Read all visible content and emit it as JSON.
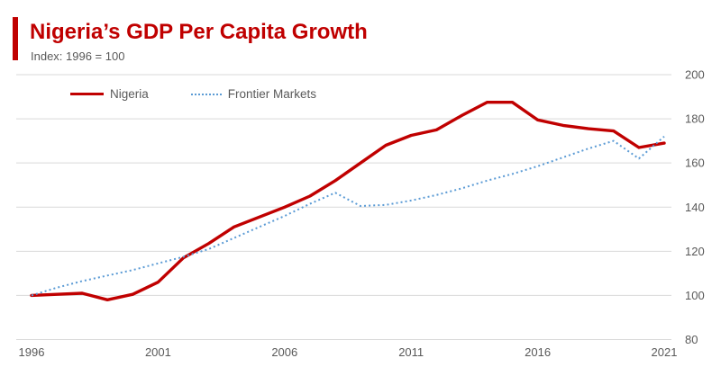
{
  "header": {
    "title": "Nigeria’s GDP Per Capita Growth",
    "subtitle": "Index: 1996 = 100"
  },
  "colors": {
    "accent_red": "#C00000",
    "nigeria_line": "#C00000",
    "frontier_line": "#5B9BD5",
    "gridline": "#D9D9D9",
    "axis_text": "#595959",
    "background": "#FFFFFF"
  },
  "legend": {
    "items": [
      {
        "label": "Nigeria",
        "style": "solid",
        "color": "#C00000"
      },
      {
        "label": "Frontier Markets",
        "style": "dotted",
        "color": "#5B9BD5"
      }
    ]
  },
  "chart_data": {
    "type": "line",
    "title": "Nigeria’s GDP Per Capita Growth",
    "subtitle": "Index: 1996 = 100",
    "xlabel": "",
    "ylabel": "",
    "x": [
      1996,
      1997,
      1998,
      1999,
      2000,
      2001,
      2002,
      2003,
      2004,
      2005,
      2006,
      2007,
      2008,
      2009,
      2010,
      2011,
      2012,
      2013,
      2014,
      2015,
      2016,
      2017,
      2018,
      2019,
      2020,
      2021
    ],
    "series": [
      {
        "name": "Nigeria",
        "style": "solid",
        "color": "#C00000",
        "values": [
          100,
          100.5,
          101,
          98,
          100.5,
          106,
          117,
          123.5,
          131,
          135.5,
          140,
          145,
          152,
          160,
          168,
          172.5,
          175,
          181.5,
          187.5,
          187.5,
          179.5,
          177,
          175.5,
          174.5,
          167,
          169
        ]
      },
      {
        "name": "Frontier Markets",
        "style": "dotted",
        "color": "#5B9BD5",
        "values": [
          100,
          103.5,
          106.5,
          109,
          111.5,
          114.5,
          117.5,
          121,
          126,
          131,
          136,
          141.5,
          146.5,
          140.5,
          141,
          143,
          145.5,
          148.5,
          152,
          155,
          158.5,
          162.5,
          166.5,
          170,
          162,
          172
        ]
      }
    ],
    "xlim": [
      1996,
      2021
    ],
    "ylim": [
      80,
      200
    ],
    "xticks": [
      1996,
      2001,
      2006,
      2011,
      2016,
      2021
    ],
    "yticks": [
      80,
      100,
      120,
      140,
      160,
      180,
      200
    ],
    "grid": true,
    "y_axis_side": "right",
    "legend_position": "top-left-inside"
  }
}
